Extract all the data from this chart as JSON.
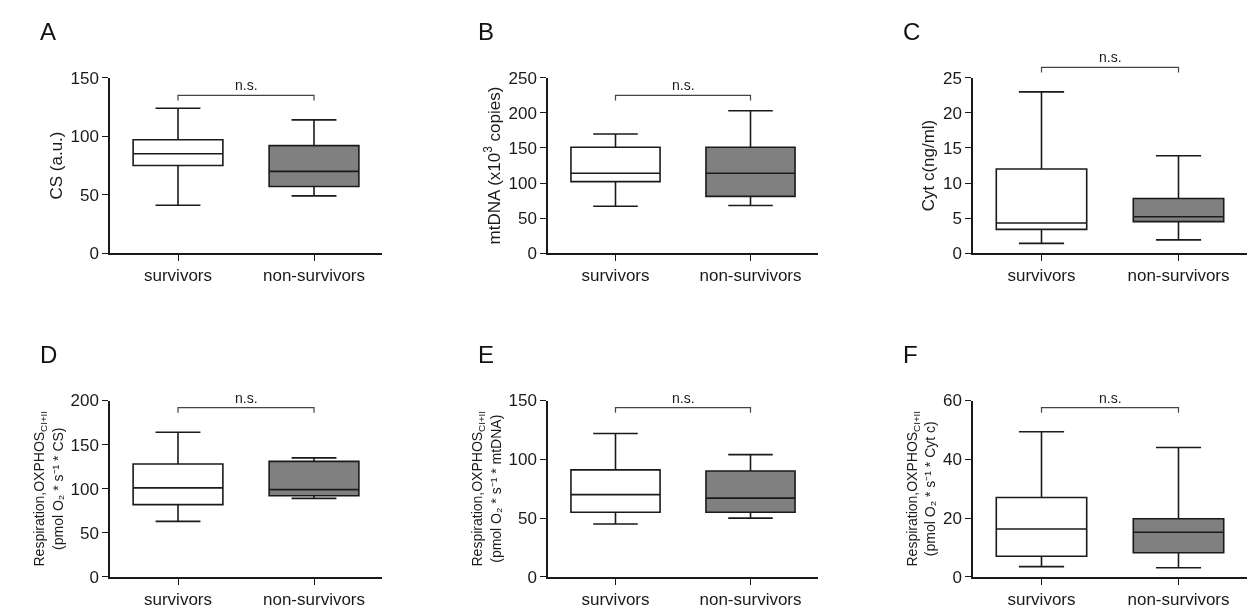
{
  "chart_data": [
    {
      "type": "box",
      "title": "A",
      "categories": [
        "survivors",
        "non-survivors"
      ],
      "colors": [
        "#ffffff",
        "#808080"
      ],
      "ylabel": "CS (a.u.)",
      "ylim": [
        0,
        150
      ],
      "yticks": [
        0,
        50,
        100,
        150
      ],
      "annotations": [
        "n.s."
      ],
      "boxes": [
        {
          "low": 41,
          "q1": 75,
          "median": 85,
          "q3": 97,
          "high": 124
        },
        {
          "low": 49,
          "q1": 57,
          "median": 70,
          "q3": 92,
          "high": 114
        }
      ]
    },
    {
      "type": "box",
      "title": "B",
      "categories": [
        "survivors",
        "non-survivors"
      ],
      "colors": [
        "#ffffff",
        "#808080"
      ],
      "ylabel": "mtDNA (x10$^{3}$ copies)",
      "ylim": [
        0,
        250
      ],
      "yticks": [
        0,
        50,
        100,
        150,
        200,
        250
      ],
      "annotations": [
        "n.s."
      ],
      "boxes": [
        {
          "low": 67,
          "q1": 102,
          "median": 114,
          "q3": 151,
          "high": 170
        },
        {
          "low": 68,
          "q1": 81,
          "median": 114,
          "q3": 151,
          "high": 203
        }
      ]
    },
    {
      "type": "box",
      "title": "C",
      "categories": [
        "survivors",
        "non-survivors"
      ],
      "colors": [
        "#ffffff",
        "#808080"
      ],
      "ylabel": "Cyt c(ng/ml)",
      "ylim": [
        0,
        25
      ],
      "yticks": [
        0,
        5,
        10,
        15,
        20,
        25
      ],
      "annotations": [
        "n.s."
      ],
      "boxes": [
        {
          "low": 1.4,
          "q1": 3.4,
          "median": 4.3,
          "q3": 12,
          "high": 23
        },
        {
          "low": 1.9,
          "q1": 4.5,
          "median": 5.2,
          "q3": 7.8,
          "high": 13.9
        }
      ]
    },
    {
      "type": "box",
      "title": "D",
      "categories": [
        "survivors",
        "non-survivors"
      ],
      "colors": [
        "#ffffff",
        "#808080"
      ],
      "ylabel": "Respiration,OXPHOS$_{CI+II}$\n(pmol O₂ * s⁻¹ * CS)",
      "ylim": [
        0,
        200
      ],
      "yticks": [
        0,
        50,
        100,
        150,
        200
      ],
      "annotations": [
        "n.s."
      ],
      "boxes": [
        {
          "low": 63,
          "q1": 82,
          "median": 101,
          "q3": 128,
          "high": 164
        },
        {
          "low": 89,
          "q1": 92,
          "median": 99,
          "q3": 131,
          "high": 135
        }
      ]
    },
    {
      "type": "box",
      "title": "E",
      "categories": [
        "survivors",
        "non-survivors"
      ],
      "colors": [
        "#ffffff",
        "#808080"
      ],
      "ylabel": "Respiration,OXPHOS$_{CI+II}$\n(pmol O₂ * s⁻¹ * mtDNA)",
      "ylim": [
        0,
        150
      ],
      "yticks": [
        0,
        50,
        100,
        150
      ],
      "annotations": [
        "n.s."
      ],
      "boxes": [
        {
          "low": 45,
          "q1": 55,
          "median": 70,
          "q3": 91,
          "high": 122
        },
        {
          "low": 50,
          "q1": 55,
          "median": 67,
          "q3": 90,
          "high": 104
        }
      ]
    },
    {
      "type": "box",
      "title": "F",
      "categories": [
        "survivors",
        "non-survivors"
      ],
      "colors": [
        "#ffffff",
        "#808080"
      ],
      "ylabel": "Respiration,OXPHOS$_{CI+II}$\n(pmol O₂ * s⁻¹ * Cyt c)",
      "ylim": [
        0,
        60
      ],
      "yticks": [
        0,
        20,
        40,
        60
      ],
      "annotations": [
        "n.s."
      ],
      "boxes": [
        {
          "low": 3.5,
          "q1": 7,
          "median": 16.3,
          "q3": 27,
          "high": 49.4
        },
        {
          "low": 3.1,
          "q1": 8.2,
          "median": 15.2,
          "q3": 19.8,
          "high": 44
        }
      ]
    }
  ]
}
